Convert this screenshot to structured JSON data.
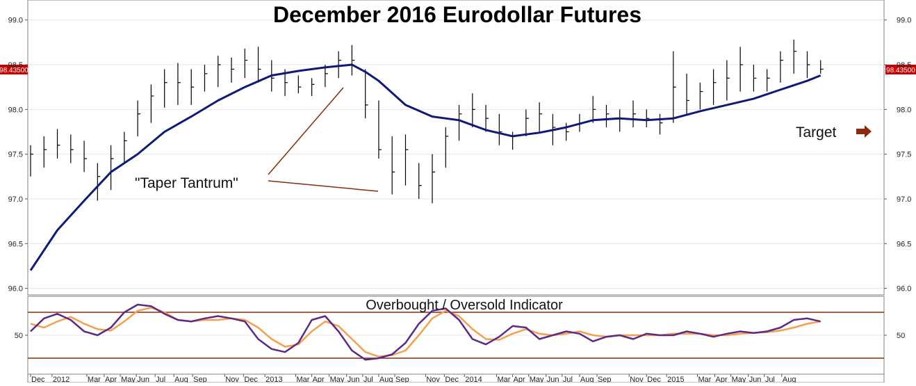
{
  "title": "December 2016 Eurodollar Futures",
  "price_tag": "98.43500",
  "annotations": {
    "taper_tantrum": "\"Taper Tantrum\"",
    "target": "Target"
  },
  "colors": {
    "bars": "#000000",
    "moving_average": "#0d1a7a",
    "annotation": "#8b2a0c",
    "oscillator_fast": "#5b2a86",
    "oscillator_slow": "#f4a04e",
    "price_tag_bg": "#cc0000"
  },
  "chart_data": [
    {
      "type": "line",
      "name": "main-price-panel",
      "title": "December 2016 Eurodollar Futures",
      "ylim": [
        95.95,
        99.2
      ],
      "yticks": [
        "96.0",
        "96.5",
        "97.0",
        "97.5",
        "98.0",
        "98.5",
        "99.0"
      ],
      "y_tick_values": [
        96.0,
        96.5,
        97.0,
        97.5,
        98.0,
        98.5,
        99.0
      ],
      "last_price": 98.435,
      "x_range": [
        0,
        60
      ],
      "series": [
        {
          "kind": "ohlc-bars",
          "x": [
            0,
            1,
            2,
            3,
            4,
            5,
            6,
            7,
            8,
            9,
            10,
            11,
            12,
            13,
            14,
            15,
            16,
            17,
            18,
            19,
            20,
            21,
            22,
            23,
            24,
            25,
            26,
            27,
            28,
            29,
            30,
            31,
            32,
            33,
            34,
            35,
            36,
            37,
            38,
            39,
            40,
            41,
            42,
            43,
            44,
            45,
            46,
            47,
            48,
            49,
            50,
            51,
            52,
            53,
            54,
            55,
            56,
            57,
            58,
            59
          ],
          "high": [
            97.6,
            97.7,
            97.78,
            97.72,
            97.65,
            97.4,
            97.6,
            97.75,
            98.1,
            98.28,
            98.45,
            98.52,
            98.45,
            98.5,
            98.6,
            98.58,
            98.68,
            98.7,
            98.55,
            98.45,
            98.38,
            98.35,
            98.5,
            98.65,
            98.72,
            98.45,
            98.1,
            97.7,
            97.72,
            97.4,
            97.5,
            97.8,
            98.05,
            98.18,
            98.05,
            97.95,
            97.75,
            98.0,
            98.08,
            97.95,
            97.85,
            97.95,
            98.15,
            98.05,
            98.0,
            98.1,
            98.0,
            97.95,
            98.65,
            98.4,
            98.3,
            98.45,
            98.55,
            98.7,
            98.5,
            98.45,
            98.65,
            98.78,
            98.65,
            98.55
          ],
          "low": [
            97.25,
            97.35,
            97.45,
            97.4,
            97.3,
            96.98,
            97.1,
            97.4,
            97.7,
            97.85,
            98.02,
            98.05,
            98.05,
            98.2,
            98.25,
            98.3,
            98.35,
            98.3,
            98.2,
            98.15,
            98.18,
            98.15,
            98.25,
            98.35,
            98.38,
            97.9,
            97.45,
            97.05,
            97.15,
            97.0,
            96.95,
            97.35,
            97.65,
            97.8,
            97.75,
            97.6,
            97.55,
            97.7,
            97.75,
            97.6,
            97.65,
            97.75,
            97.85,
            97.8,
            97.75,
            97.8,
            97.8,
            97.72,
            97.85,
            97.95,
            98.0,
            98.05,
            98.1,
            98.2,
            98.2,
            98.2,
            98.3,
            98.4,
            98.35,
            98.4
          ],
          "close": [
            97.5,
            97.55,
            97.6,
            97.55,
            97.45,
            97.25,
            97.45,
            97.65,
            97.95,
            98.15,
            98.3,
            98.3,
            98.25,
            98.4,
            98.5,
            98.45,
            98.55,
            98.45,
            98.35,
            98.3,
            98.25,
            98.28,
            98.4,
            98.55,
            98.55,
            98.05,
            97.55,
            97.3,
            97.55,
            97.15,
            97.3,
            97.7,
            97.95,
            98.0,
            97.9,
            97.75,
            97.7,
            97.9,
            97.95,
            97.8,
            97.75,
            97.85,
            98.0,
            97.95,
            97.9,
            97.95,
            97.9,
            97.85,
            98.25,
            98.1,
            98.2,
            98.3,
            98.35,
            98.5,
            98.35,
            98.35,
            98.55,
            98.65,
            98.5,
            98.45
          ]
        },
        {
          "kind": "moving-average",
          "x": [
            0,
            2,
            4,
            6,
            8,
            10,
            12,
            14,
            16,
            18,
            20,
            22,
            24,
            25,
            26,
            28,
            30,
            32,
            34,
            36,
            38,
            40,
            42,
            44,
            46,
            48,
            50,
            52,
            54,
            56,
            58,
            59
          ],
          "values": [
            96.2,
            96.65,
            96.98,
            97.3,
            97.5,
            97.75,
            97.92,
            98.1,
            98.25,
            98.38,
            98.43,
            98.47,
            98.5,
            98.42,
            98.32,
            98.05,
            97.92,
            97.88,
            97.77,
            97.7,
            97.74,
            97.8,
            97.88,
            97.9,
            97.88,
            97.9,
            97.98,
            98.05,
            98.12,
            98.22,
            98.32,
            98.38
          ]
        }
      ]
    },
    {
      "type": "line",
      "name": "oscillator-panel",
      "title": "Overbought / Oversold Indicator",
      "ylim": [
        0,
        100
      ],
      "yticks": [
        "50"
      ],
      "y_tick_values": [
        50
      ],
      "overbought_level": 80,
      "oversold_level": 20,
      "x_range": [
        0,
        60
      ],
      "x_tick_labels": [
        "Dec",
        "2012",
        "Mar",
        "Apr",
        "May",
        "Jun",
        "Jul",
        "Aug",
        "Sep",
        "Nov",
        "Dec",
        "2013",
        "Mar",
        "Apr",
        "May",
        "Jun",
        "Jul",
        "Aug",
        "Sep",
        "Nov",
        "Dec",
        "2014",
        "Mar",
        "Apr",
        "May",
        "Jun",
        "Jul",
        "Aug",
        "Sep",
        "Nov",
        "Dec",
        "2015",
        "Mar",
        "Apr",
        "May",
        "Jun",
        "Jul",
        "Aug"
      ],
      "x_tick_values": [
        0,
        1.6,
        4.2,
        5.5,
        6.7,
        7.9,
        9.3,
        10.7,
        12.1,
        14.5,
        15.9,
        17.5,
        19.8,
        21.0,
        22.3,
        23.6,
        24.8,
        26.0,
        27.2,
        29.5,
        30.9,
        32.4,
        34.8,
        36.0,
        37.2,
        38.5,
        39.7,
        41.0,
        42.3,
        44.7,
        46.0,
        47.5,
        49.8,
        51.1,
        52.3,
        53.6,
        54.8,
        56.1
      ],
      "series": [
        {
          "kind": "fast",
          "x": [
            0,
            1,
            2,
            3,
            4,
            5,
            6,
            7,
            8,
            9,
            10,
            11,
            12,
            13,
            14,
            15,
            16,
            17,
            18,
            19,
            20,
            21,
            22,
            23,
            24,
            25,
            26,
            27,
            28,
            29,
            30,
            31,
            32,
            33,
            34,
            35,
            36,
            37,
            38,
            39,
            40,
            41,
            42,
            43,
            44,
            45,
            46,
            47,
            48,
            49,
            50,
            51,
            52,
            53,
            54,
            55,
            56,
            57,
            58,
            59
          ],
          "values": [
            55,
            72,
            78,
            70,
            55,
            50,
            60,
            80,
            90,
            88,
            78,
            70,
            68,
            72,
            75,
            72,
            68,
            45,
            32,
            28,
            40,
            70,
            75,
            55,
            30,
            18,
            20,
            25,
            40,
            65,
            82,
            85,
            70,
            45,
            38,
            48,
            62,
            60,
            45,
            50,
            55,
            52,
            42,
            48,
            50,
            45,
            52,
            50,
            50,
            55,
            52,
            48,
            52,
            55,
            53,
            55,
            60,
            70,
            72,
            68
          ]
        },
        {
          "kind": "slow",
          "x": [
            0,
            1,
            2,
            3,
            4,
            5,
            6,
            7,
            8,
            9,
            10,
            11,
            12,
            13,
            14,
            15,
            16,
            17,
            18,
            19,
            20,
            21,
            22,
            23,
            24,
            25,
            26,
            27,
            28,
            29,
            30,
            31,
            32,
            33,
            34,
            35,
            36,
            37,
            38,
            39,
            40,
            41,
            42,
            43,
            44,
            45,
            46,
            47,
            48,
            49,
            50,
            51,
            52,
            53,
            54,
            55,
            56,
            57,
            58,
            59
          ],
          "values": [
            65,
            60,
            68,
            74,
            65,
            58,
            56,
            68,
            82,
            86,
            80,
            70,
            68,
            70,
            70,
            72,
            70,
            60,
            45,
            35,
            38,
            55,
            68,
            62,
            45,
            28,
            22,
            24,
            30,
            50,
            72,
            82,
            75,
            58,
            45,
            44,
            52,
            58,
            52,
            50,
            52,
            55,
            50,
            48,
            50,
            50,
            50,
            50,
            52,
            52,
            52,
            50,
            50,
            52,
            53,
            54,
            56,
            60,
            65,
            68
          ]
        }
      ]
    }
  ]
}
